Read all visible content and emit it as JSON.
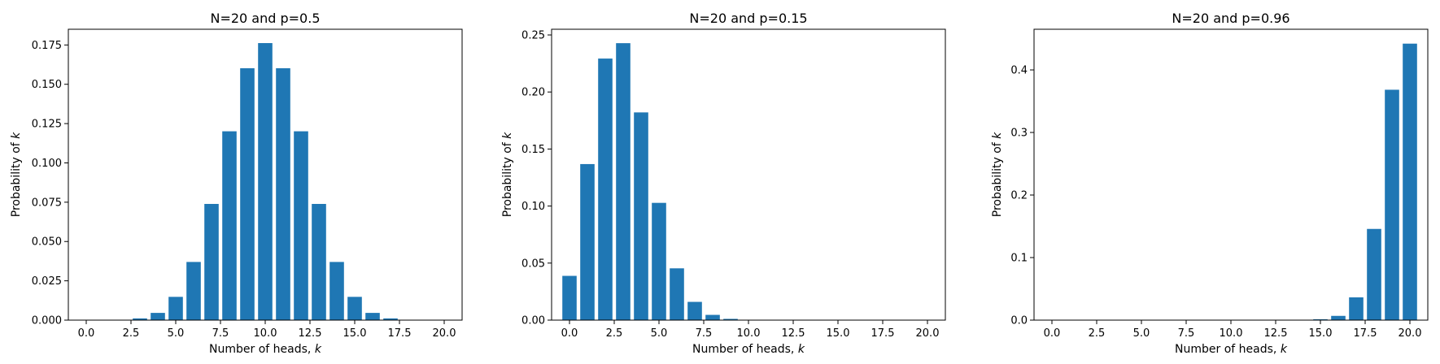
{
  "chart_data": [
    {
      "type": "bar",
      "title": "N=20 and p=0.5",
      "xlabel": "Number of heads, ",
      "xlabel_var": "k",
      "ylabel": "Probability of ",
      "ylabel_var": "k",
      "color": "#1f77b4",
      "grid": false,
      "xlim": [
        -1,
        21
      ],
      "ylim": [
        0,
        0.185
      ],
      "xticks": [
        "0.0",
        "2.5",
        "5.0",
        "7.5",
        "10.0",
        "12.5",
        "15.0",
        "17.5",
        "20.0"
      ],
      "yticks": [
        "0.000",
        "0.025",
        "0.050",
        "0.075",
        "0.100",
        "0.125",
        "0.150",
        "0.175"
      ],
      "x": [
        0,
        1,
        2,
        3,
        4,
        5,
        6,
        7,
        8,
        9,
        10,
        11,
        12,
        13,
        14,
        15,
        16,
        17,
        18,
        19,
        20
      ],
      "values": [
        1e-06,
        2e-05,
        0.0002,
        0.0011,
        0.0046,
        0.0148,
        0.037,
        0.0739,
        0.1201,
        0.1602,
        0.1762,
        0.1602,
        0.1201,
        0.0739,
        0.037,
        0.0148,
        0.0046,
        0.0011,
        0.0002,
        2e-05,
        1e-06
      ]
    },
    {
      "type": "bar",
      "title": "N=20 and p=0.15",
      "xlabel": "Number of heads, ",
      "xlabel_var": "k",
      "ylabel": "Probability of ",
      "ylabel_var": "k",
      "color": "#1f77b4",
      "grid": false,
      "xlim": [
        -1,
        21
      ],
      "ylim": [
        0,
        0.255
      ],
      "xticks": [
        "0.0",
        "2.5",
        "5.0",
        "7.5",
        "10.0",
        "12.5",
        "15.0",
        "17.5",
        "20.0"
      ],
      "yticks": [
        "0.00",
        "0.05",
        "0.10",
        "0.15",
        "0.20",
        "0.25"
      ],
      "x": [
        0,
        1,
        2,
        3,
        4,
        5,
        6,
        7,
        8,
        9,
        10,
        11,
        12,
        13,
        14,
        15,
        16,
        17,
        18,
        19,
        20
      ],
      "values": [
        0.0388,
        0.1368,
        0.2293,
        0.2428,
        0.1821,
        0.1028,
        0.0454,
        0.016,
        0.0046,
        0.0011,
        0.0002,
        3e-05,
        4e-06,
        4e-07,
        3e-08,
        0.0,
        0.0,
        0.0,
        0.0,
        0.0,
        0.0
      ]
    },
    {
      "type": "bar",
      "title": "N=20 and p=0.96",
      "xlabel": "Number of heads, ",
      "xlabel_var": "k",
      "ylabel": "Probability of ",
      "ylabel_var": "k",
      "color": "#1f77b4",
      "grid": false,
      "xlim": [
        -1,
        21
      ],
      "ylim": [
        0,
        0.465
      ],
      "xticks": [
        "0.0",
        "2.5",
        "5.0",
        "7.5",
        "10.0",
        "12.5",
        "15.0",
        "17.5",
        "20.0"
      ],
      "yticks": [
        "0.0",
        "0.1",
        "0.2",
        "0.3",
        "0.4"
      ],
      "x": [
        0,
        1,
        2,
        3,
        4,
        5,
        6,
        7,
        8,
        9,
        10,
        11,
        12,
        13,
        14,
        15,
        16,
        17,
        18,
        19,
        20
      ],
      "values": [
        0.0,
        0.0,
        0.0,
        0.0,
        0.0,
        0.0,
        0.0,
        0.0,
        0.0,
        0.0,
        0.0,
        0.0,
        1e-05,
        0.0001,
        0.0005,
        0.0014,
        0.0068,
        0.0364,
        0.1458,
        0.3683,
        0.442
      ]
    }
  ]
}
